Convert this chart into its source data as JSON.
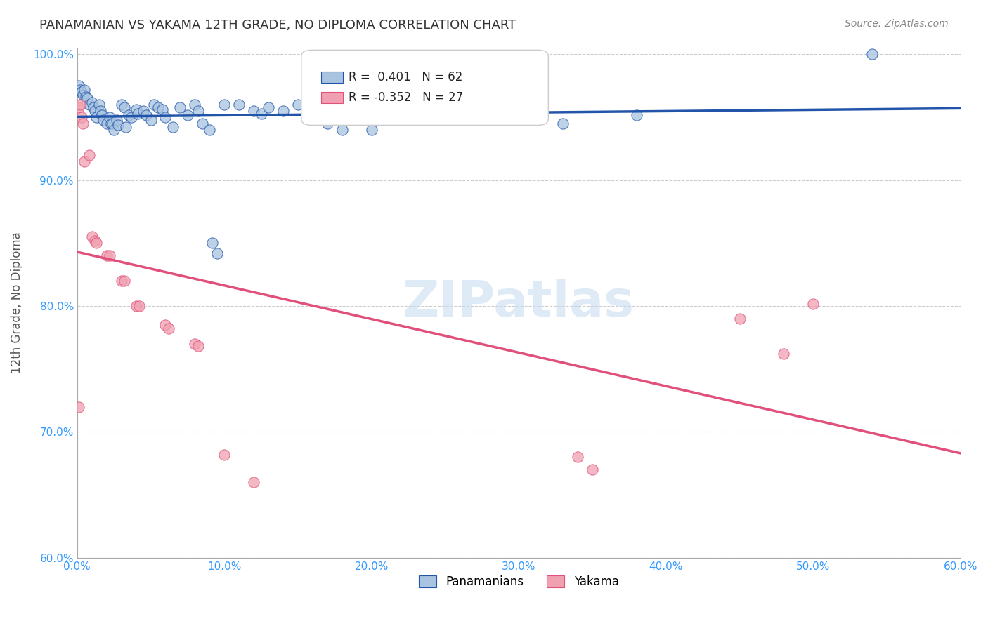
{
  "title": "PANAMANIAN VS YAKAMA 12TH GRADE, NO DIPLOMA CORRELATION CHART",
  "source": "Source: ZipAtlas.com",
  "xlabel": "",
  "ylabel": "12th Grade, No Diploma",
  "xlim": [
    0.0,
    0.6
  ],
  "ylim": [
    0.6,
    1.005
  ],
  "xticks": [
    0.0,
    0.1,
    0.2,
    0.3,
    0.4,
    0.5,
    0.6
  ],
  "xticklabels": [
    "0.0%",
    "10.0%",
    "20.0%",
    "30.0%",
    "40.0%",
    "50.0%",
    "60.0%"
  ],
  "yticks": [
    0.6,
    0.7,
    0.8,
    0.9,
    1.0
  ],
  "yticklabels": [
    "60.0%",
    "70.0%",
    "80.0%",
    "90.0%",
    "100.0%"
  ],
  "blue_r": "0.401",
  "blue_n": "62",
  "pink_r": "-0.352",
  "pink_n": "27",
  "blue_color": "#a8c4e0",
  "pink_color": "#f0a0b0",
  "blue_line_color": "#2255aa",
  "pink_line_color": "#e0507a",
  "watermark": "ZIPatlas",
  "watermark_color": "#c8ddf0",
  "blue_dots": [
    [
      0.001,
      0.975
    ],
    [
      0.002,
      0.972
    ],
    [
      0.003,
      0.97
    ],
    [
      0.004,
      0.968
    ],
    [
      0.005,
      0.972
    ],
    [
      0.006,
      0.966
    ],
    [
      0.007,
      0.965
    ],
    [
      0.008,
      0.96
    ],
    [
      0.01,
      0.962
    ],
    [
      0.011,
      0.958
    ],
    [
      0.012,
      0.955
    ],
    [
      0.013,
      0.95
    ],
    [
      0.015,
      0.96
    ],
    [
      0.016,
      0.955
    ],
    [
      0.017,
      0.952
    ],
    [
      0.018,
      0.948
    ],
    [
      0.02,
      0.945
    ],
    [
      0.022,
      0.95
    ],
    [
      0.023,
      0.945
    ],
    [
      0.024,
      0.945
    ],
    [
      0.025,
      0.94
    ],
    [
      0.027,
      0.948
    ],
    [
      0.028,
      0.944
    ],
    [
      0.03,
      0.96
    ],
    [
      0.032,
      0.958
    ],
    [
      0.033,
      0.942
    ],
    [
      0.035,
      0.952
    ],
    [
      0.037,
      0.95
    ],
    [
      0.04,
      0.956
    ],
    [
      0.041,
      0.953
    ],
    [
      0.045,
      0.955
    ],
    [
      0.047,
      0.952
    ],
    [
      0.05,
      0.948
    ],
    [
      0.052,
      0.96
    ],
    [
      0.055,
      0.958
    ],
    [
      0.058,
      0.956
    ],
    [
      0.06,
      0.95
    ],
    [
      0.065,
      0.942
    ],
    [
      0.07,
      0.958
    ],
    [
      0.075,
      0.952
    ],
    [
      0.08,
      0.96
    ],
    [
      0.082,
      0.955
    ],
    [
      0.085,
      0.945
    ],
    [
      0.09,
      0.94
    ],
    [
      0.092,
      0.85
    ],
    [
      0.095,
      0.842
    ],
    [
      0.1,
      0.96
    ],
    [
      0.11,
      0.96
    ],
    [
      0.12,
      0.955
    ],
    [
      0.125,
      0.953
    ],
    [
      0.13,
      0.958
    ],
    [
      0.14,
      0.955
    ],
    [
      0.15,
      0.96
    ],
    [
      0.16,
      0.95
    ],
    [
      0.17,
      0.945
    ],
    [
      0.18,
      0.94
    ],
    [
      0.2,
      0.94
    ],
    [
      0.25,
      0.958
    ],
    [
      0.29,
      0.952
    ],
    [
      0.33,
      0.945
    ],
    [
      0.38,
      0.952
    ],
    [
      0.54,
      1.0
    ]
  ],
  "pink_dots": [
    [
      0.001,
      0.958
    ],
    [
      0.002,
      0.96
    ],
    [
      0.003,
      0.95
    ],
    [
      0.004,
      0.945
    ],
    [
      0.005,
      0.915
    ],
    [
      0.008,
      0.92
    ],
    [
      0.01,
      0.855
    ],
    [
      0.012,
      0.852
    ],
    [
      0.013,
      0.85
    ],
    [
      0.02,
      0.84
    ],
    [
      0.022,
      0.84
    ],
    [
      0.03,
      0.82
    ],
    [
      0.032,
      0.82
    ],
    [
      0.04,
      0.8
    ],
    [
      0.042,
      0.8
    ],
    [
      0.001,
      0.72
    ],
    [
      0.06,
      0.785
    ],
    [
      0.062,
      0.782
    ],
    [
      0.08,
      0.77
    ],
    [
      0.082,
      0.768
    ],
    [
      0.1,
      0.682
    ],
    [
      0.12,
      0.66
    ],
    [
      0.35,
      0.67
    ],
    [
      0.34,
      0.68
    ],
    [
      0.45,
      0.79
    ],
    [
      0.48,
      0.762
    ],
    [
      0.5,
      0.802
    ]
  ],
  "legend_labels": [
    "Panamanians",
    "Yakama"
  ]
}
